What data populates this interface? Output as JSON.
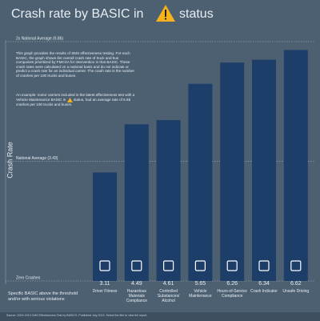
{
  "chart_data": {
    "type": "bar",
    "title_before": "Crash rate by BASIC in",
    "title_after": "status",
    "y_label": "Crash Rate",
    "description": "This graph provides the results of SMS effectiveness testing. For each BASIC, the graph shows the overall crash rate of truck and bus companies prioritized by FMCSA for intervention in that BASIC. These crash rates were calculated on a national basis and do not indicate or predict a crash rate for an individual carrier. The crash rate is the number of crashes per 100 trucks and buses.",
    "example_before": "An example: motor carriers included in the latest effectiveness test with a Vehicle Maintenance BASIC in",
    "example_after": "status, had an average rate of 5.65 crashes per 100 trucks and buses.",
    "legend_note": "Specific BASIC above the threshold and/or with serious violations",
    "source": "Source: 2009-2013 CMS Effectiveness Test by BASICS. Published July 2013. Select the title to view full report.",
    "categories": [
      "Driver Fitness",
      "Hazardous Materials Compliance",
      "Controlled Substances/ Alcohol",
      "Vehicle Maintenance",
      "Hours-of-Service Compliance",
      "Crash Indicator",
      "Unsafe Driving"
    ],
    "values": [
      3.11,
      4.49,
      4.61,
      5.65,
      6.26,
      6.34,
      6.62
    ],
    "color": "#1c3e69",
    "ylim": [
      0,
      6.86
    ],
    "yticks": [
      {
        "value": 6.86,
        "label": "2x National Average (6.86)"
      },
      {
        "value": 3.43,
        "label": "National Average (3.43)"
      },
      {
        "value": 0,
        "label": "Zero Crashes"
      }
    ]
  }
}
